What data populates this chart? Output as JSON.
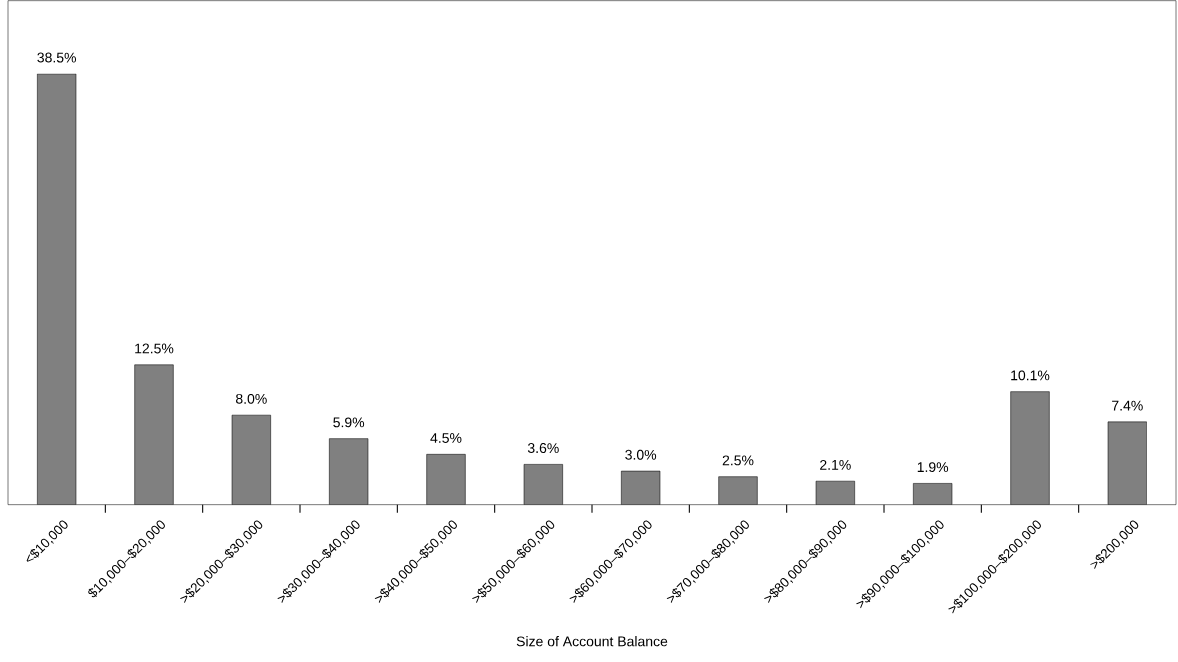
{
  "chart_data": {
    "type": "bar",
    "xlabel": "Size of Account Balance",
    "categories": [
      "<$10,000",
      "$10,000–$20,000",
      ">$20,000–$30,000",
      ">$30,000–$40,000",
      ">$40,000–$50,000",
      ">$50,000–$60,000",
      ">$60,000–$70,000",
      ">$70,000–$80,000",
      ">$80,000–$90,000",
      ">$90,000–$100,000",
      ">$100,000–$200,000",
      ">$200,000"
    ],
    "values": [
      38.5,
      12.5,
      8.0,
      5.9,
      4.5,
      3.6,
      3.0,
      2.5,
      2.1,
      1.9,
      10.1,
      7.4
    ],
    "value_labels": [
      "38.5%",
      "12.5%",
      "8.0%",
      "5.9%",
      "4.5%",
      "3.6%",
      "3.0%",
      "2.5%",
      "2.1%",
      "1.9%",
      "10.1%",
      "7.4%"
    ],
    "color": "#808080",
    "tick_labels": "x"
  }
}
